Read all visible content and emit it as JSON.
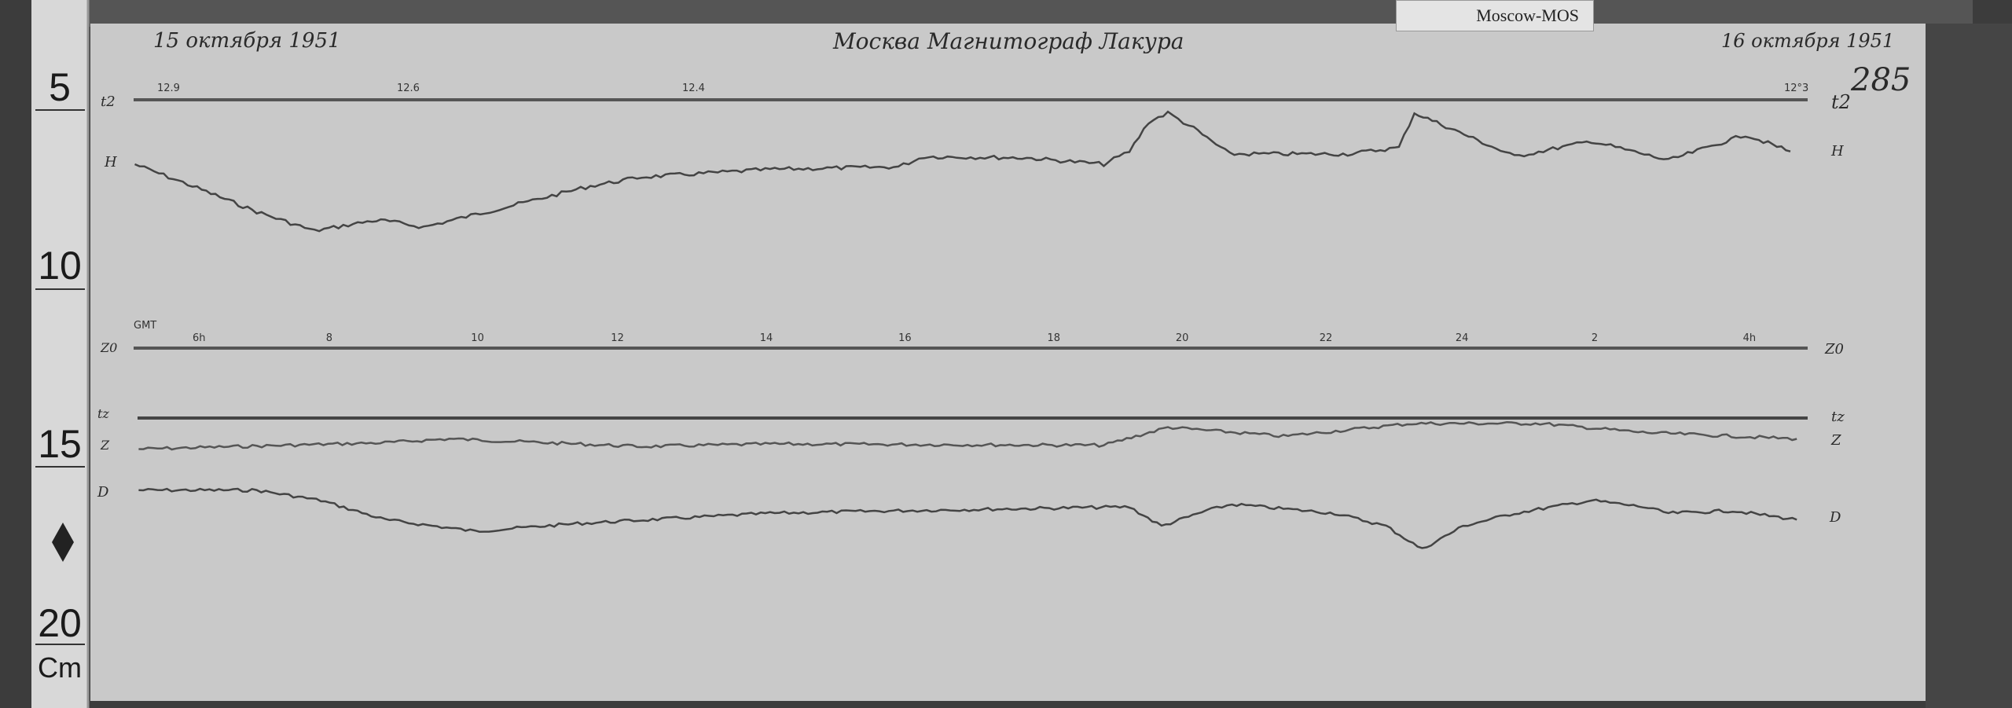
{
  "header": {
    "date_start": "15 октября 1951",
    "title": "Москва Магнитограф Лакура",
    "date_end": "16 октября 1951",
    "sheet_number": "285",
    "station_label": "Moscow-MOS"
  },
  "ruler": {
    "marks": [
      "5",
      "10",
      "15",
      "20"
    ],
    "unit": "Cm"
  },
  "scale_marks": [
    "12.9",
    "12.6",
    "12.4",
    "12°3"
  ],
  "time_axis": {
    "label": "GMT",
    "ticks": [
      "6h",
      "8",
      "10",
      "12",
      "14",
      "16",
      "18",
      "20",
      "22",
      "24",
      "2",
      "4h"
    ]
  },
  "channels": {
    "t2_left": "t2",
    "t2_right": "t2",
    "h_left": "H",
    "h_right": "H",
    "z0_left": "Z0",
    "z0_right": "Z0",
    "tz_left": "tz",
    "tz_right": "tz",
    "z_left": "Z",
    "z_right": "Z",
    "d_left": "D",
    "d_right": "D"
  }
}
